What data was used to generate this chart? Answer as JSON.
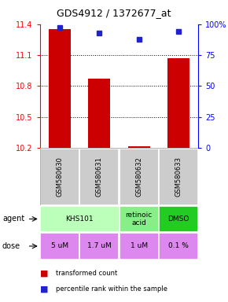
{
  "title": "GDS4912 / 1372677_at",
  "samples": [
    "GSM580630",
    "GSM580631",
    "GSM580632",
    "GSM580633"
  ],
  "bar_values": [
    11.35,
    10.87,
    10.22,
    11.07
  ],
  "percentile_values": [
    97,
    93,
    88,
    94
  ],
  "ylim_left": [
    10.2,
    11.4
  ],
  "ylim_right": [
    0,
    100
  ],
  "yticks_left": [
    10.2,
    10.5,
    10.8,
    11.1,
    11.4
  ],
  "ytick_labels_right": [
    "0",
    "25",
    "50",
    "75",
    "100%"
  ],
  "bar_color": "#cc0000",
  "dot_color": "#2222cc",
  "bar_width": 0.55,
  "agent_groups": [
    {
      "cols": [
        0,
        1
      ],
      "text": "KHS101",
      "color": "#bbffbb"
    },
    {
      "cols": [
        2
      ],
      "text": "retinoic\nacid",
      "color": "#88ee88"
    },
    {
      "cols": [
        3
      ],
      "text": "DMSO",
      "color": "#22cc22"
    }
  ],
  "dose_labels": [
    "5 uM",
    "1.7 uM",
    "1 uM",
    "0.1 %"
  ],
  "dose_color": "#dd88ee",
  "sample_bg": "#cccccc",
  "bg_color": "#ffffff",
  "grid_color": "#aaaaaa",
  "grid_lines": [
    10.5,
    10.8,
    11.1
  ]
}
